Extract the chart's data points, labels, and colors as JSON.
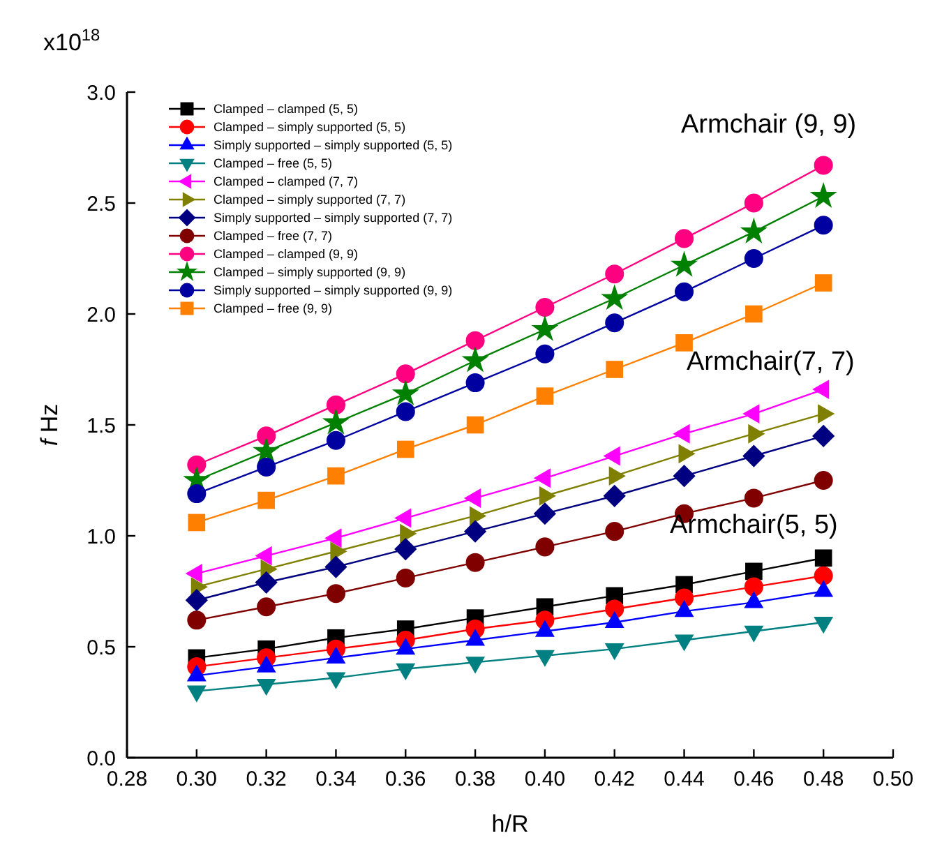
{
  "chart_data": {
    "type": "line",
    "xlabel": "h/R",
    "ylabel": "f Hz",
    "x": [
      0.3,
      0.32,
      0.34,
      0.36,
      0.38,
      0.4,
      0.42,
      0.44,
      0.46,
      0.48
    ],
    "xlim": [
      0.28,
      0.5
    ],
    "xticks": [
      {
        "value": 0.28,
        "label": "0.28"
      },
      {
        "value": 0.3,
        "label": "0.30"
      },
      {
        "value": 0.32,
        "label": "0.32"
      },
      {
        "value": 0.34,
        "label": "0.34"
      },
      {
        "value": 0.36,
        "label": "0.36"
      },
      {
        "value": 0.38,
        "label": "0.38"
      },
      {
        "value": 0.4,
        "label": "0.40"
      },
      {
        "value": 0.42,
        "label": "0.42"
      },
      {
        "value": 0.44,
        "label": "0.44"
      },
      {
        "value": 0.46,
        "label": "0.46"
      },
      {
        "value": 0.48,
        "label": "0.48"
      },
      {
        "value": 0.5,
        "label": "0.50"
      }
    ],
    "ylim": [
      0,
      3.0
    ],
    "yticks": [
      {
        "value": 0,
        "label": "0.0"
      },
      {
        "value": 0.5,
        "label": "0.5"
      },
      {
        "value": 1.0,
        "label": "1.0"
      },
      {
        "value": 1.5,
        "label": "1.5"
      },
      {
        "value": 2.0,
        "label": "2.0"
      },
      {
        "value": 2.5,
        "label": "2.5"
      },
      {
        "value": 3.0,
        "label": "3.0"
      }
    ],
    "grid": false,
    "legend": "top left",
    "line_style": "solid",
    "annotations": [
      "x10$^{18}$",
      "Armchair (9, 9)",
      "Armchair(7, 7)",
      "Armchair(5, 5)"
    ],
    "series": [
      {
        "name": "Clamped –  clamped (5, 5)",
        "color": "#000000",
        "marker": "square",
        "values": [
          0.45,
          0.49,
          0.54,
          0.58,
          0.63,
          0.68,
          0.73,
          0.78,
          0.84,
          0.9
        ]
      },
      {
        "name": "Clamped – simply supported (5, 5)",
        "color": "#ff0000",
        "marker": "circle",
        "values": [
          0.41,
          0.45,
          0.49,
          0.53,
          0.58,
          0.62,
          0.67,
          0.72,
          0.77,
          0.82
        ]
      },
      {
        "name": "Simply supported – simply supported (5, 5)",
        "color": "#0000ff",
        "marker": "triangle",
        "values": [
          0.37,
          0.41,
          0.45,
          0.49,
          0.53,
          0.57,
          0.61,
          0.66,
          0.7,
          0.75
        ]
      },
      {
        "name": "Clamped – free (5, 5)",
        "color": "#008080",
        "marker": "triangle-down",
        "values": [
          0.3,
          0.33,
          0.36,
          0.4,
          0.43,
          0.46,
          0.49,
          0.53,
          0.57,
          0.61
        ]
      },
      {
        "name": "Clamped – clamped (7, 7)",
        "color": "#ff00ff",
        "marker": "triangle-left",
        "values": [
          0.83,
          0.91,
          0.99,
          1.08,
          1.17,
          1.26,
          1.36,
          1.46,
          1.55,
          1.66
        ]
      },
      {
        "name": "Clamped – simply supported (7, 7)",
        "color": "#808000",
        "marker": "triangle-right",
        "values": [
          0.77,
          0.85,
          0.93,
          1.01,
          1.09,
          1.18,
          1.27,
          1.37,
          1.46,
          1.55
        ]
      },
      {
        "name": "Simply supported – simply supported (7, 7)",
        "color": "#000080",
        "marker": "diamond",
        "values": [
          0.71,
          0.79,
          0.86,
          0.94,
          1.02,
          1.1,
          1.18,
          1.27,
          1.36,
          1.45
        ]
      },
      {
        "name": "Clamped – free (7, 7)",
        "color": "#800000",
        "marker": "circle",
        "values": [
          0.62,
          0.68,
          0.74,
          0.81,
          0.88,
          0.95,
          1.02,
          1.1,
          1.17,
          1.25
        ]
      },
      {
        "name": "Clamped – clamped (9, 9)",
        "color": "#ff0080",
        "marker": "circle",
        "values": [
          1.32,
          1.45,
          1.59,
          1.73,
          1.88,
          2.03,
          2.18,
          2.34,
          2.5,
          2.67
        ]
      },
      {
        "name": "Clamped – simply supported (9, 9)",
        "color": "#008000",
        "marker": "star",
        "values": [
          1.25,
          1.38,
          1.51,
          1.64,
          1.79,
          1.93,
          2.07,
          2.22,
          2.37,
          2.53
        ]
      },
      {
        "name": "Simply supported – simply supported (9, 9)",
        "color": "#0000a0",
        "marker": "circle",
        "values": [
          1.19,
          1.31,
          1.43,
          1.56,
          1.69,
          1.82,
          1.96,
          2.1,
          2.25,
          2.4
        ]
      },
      {
        "name": "Clamped – free (9, 9)",
        "color": "#ff8000",
        "marker": "square",
        "values": [
          1.06,
          1.16,
          1.27,
          1.39,
          1.5,
          1.63,
          1.75,
          1.87,
          2.0,
          2.14
        ]
      }
    ]
  }
}
